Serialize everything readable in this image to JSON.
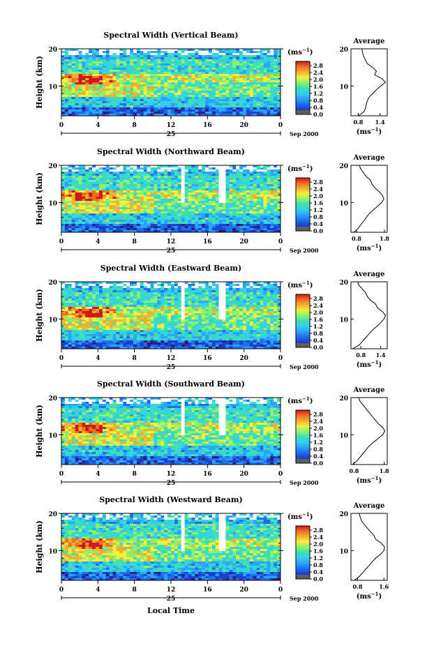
{
  "chart_data": {
    "type": "heatmap",
    "x_label": "Local Time",
    "x_ticks": [
      "0",
      "4",
      "8",
      "12",
      "16",
      "20",
      "0"
    ],
    "x_range": [
      0,
      24
    ],
    "date_day": "25",
    "date_suffix": "Sep 2000",
    "y_label": "Height (km)",
    "y_range": [
      2,
      20
    ],
    "y_ticks": [
      "20",
      "10"
    ],
    "colorbar_unit": "(ms",
    "colorbar_unit_sup": "−1",
    "colorbar_unit_close": ")",
    "colorbar_ticks": [
      "2.8",
      "2.4",
      "2.0",
      "1.6",
      "1.2",
      "0.8",
      "0.4",
      "0.0"
    ],
    "colorbar_range": [
      0,
      2.8
    ],
    "profile_title": "Average",
    "profile_unit": "(ms",
    "profile_unit_sup": "−1",
    "profile_unit_close": ")",
    "panels": [
      {
        "title": "Spectral Width (Vertical Beam)",
        "profile_xticks": [
          "0.8",
          "1.4"
        ],
        "profile_xrange": [
          0.6,
          1.6
        ],
        "profile": [
          [
            2,
            0.8
          ],
          [
            3,
            0.95
          ],
          [
            4,
            1.0
          ],
          [
            5,
            1.02
          ],
          [
            6,
            1.05
          ],
          [
            7,
            1.1
          ],
          [
            8,
            1.2
          ],
          [
            9,
            1.3
          ],
          [
            10,
            1.42
          ],
          [
            11,
            1.55
          ],
          [
            12,
            1.45
          ],
          [
            13,
            1.25
          ],
          [
            14,
            1.3
          ],
          [
            15,
            1.2
          ],
          [
            16,
            1.05
          ],
          [
            17,
            1.0
          ],
          [
            18,
            0.95
          ],
          [
            19,
            0.92
          ],
          [
            20,
            0.9
          ]
        ]
      },
      {
        "title": "Spectral Width (Northward Beam)",
        "profile_xticks": [
          "0.8",
          "1.8"
        ],
        "profile_xrange": [
          0.6,
          1.9
        ],
        "profile": [
          [
            2,
            0.7
          ],
          [
            3,
            0.85
          ],
          [
            4,
            0.95
          ],
          [
            5,
            1.05
          ],
          [
            6,
            1.15
          ],
          [
            7,
            1.25
          ],
          [
            8,
            1.4
          ],
          [
            9,
            1.55
          ],
          [
            10,
            1.7
          ],
          [
            11,
            1.78
          ],
          [
            12,
            1.72
          ],
          [
            13,
            1.6
          ],
          [
            14,
            1.45
          ],
          [
            15,
            1.35
          ],
          [
            16,
            1.3
          ],
          [
            17,
            1.15
          ],
          [
            18,
            1.05
          ],
          [
            19,
            0.95
          ],
          [
            20,
            0.9
          ]
        ]
      },
      {
        "title": "Spectral Width (Eastward Beam)",
        "profile_xticks": [
          "0.8",
          "1.4"
        ],
        "profile_xrange": [
          0.5,
          1.6
        ],
        "profile": [
          [
            2,
            0.55
          ],
          [
            3,
            0.75
          ],
          [
            4,
            0.85
          ],
          [
            5,
            0.95
          ],
          [
            6,
            1.05
          ],
          [
            7,
            1.15
          ],
          [
            8,
            1.28
          ],
          [
            9,
            1.4
          ],
          [
            10,
            1.5
          ],
          [
            11,
            1.55
          ],
          [
            12,
            1.45
          ],
          [
            13,
            1.3
          ],
          [
            14,
            1.25
          ],
          [
            15,
            1.1
          ],
          [
            16,
            1.0
          ],
          [
            17,
            0.95
          ],
          [
            18,
            0.85
          ],
          [
            19,
            0.75
          ],
          [
            20,
            0.7
          ]
        ]
      },
      {
        "title": "Spectral Width (Southward Beam)",
        "profile_xticks": [
          "0.8",
          "1.8"
        ],
        "profile_xrange": [
          0.7,
          1.9
        ],
        "profile": [
          [
            2,
            0.75
          ],
          [
            3,
            0.9
          ],
          [
            4,
            1.0
          ],
          [
            5,
            1.1
          ],
          [
            6,
            1.2
          ],
          [
            7,
            1.3
          ],
          [
            8,
            1.45
          ],
          [
            9,
            1.6
          ],
          [
            10,
            1.75
          ],
          [
            11,
            1.82
          ],
          [
            12,
            1.75
          ],
          [
            13,
            1.6
          ],
          [
            14,
            1.5
          ],
          [
            15,
            1.4
          ],
          [
            16,
            1.3
          ],
          [
            17,
            1.2
          ],
          [
            18,
            1.1
          ],
          [
            19,
            1.0
          ],
          [
            20,
            0.95
          ]
        ]
      },
      {
        "title": "Spectral Width (Westward Beam)",
        "profile_xticks": [
          "0.8",
          "1.6"
        ],
        "profile_xrange": [
          0.6,
          1.7
        ],
        "profile": [
          [
            2,
            0.7
          ],
          [
            3,
            0.85
          ],
          [
            4,
            0.95
          ],
          [
            5,
            1.05
          ],
          [
            6,
            1.15
          ],
          [
            7,
            1.25
          ],
          [
            8,
            1.35
          ],
          [
            9,
            1.5
          ],
          [
            10,
            1.6
          ],
          [
            11,
            1.62
          ],
          [
            12,
            1.52
          ],
          [
            13,
            1.35
          ],
          [
            14,
            1.3
          ],
          [
            15,
            1.2
          ],
          [
            16,
            1.1
          ],
          [
            17,
            1.0
          ],
          [
            18,
            0.92
          ],
          [
            19,
            0.88
          ],
          [
            20,
            0.85
          ]
        ]
      }
    ]
  },
  "colors": {
    "colormap": [
      "#2b1e7a",
      "#1f3fd0",
      "#1e6ff0",
      "#2aa5ff",
      "#34d0e8",
      "#3ee0b0",
      "#8ff070",
      "#f0f040",
      "#f5b030",
      "#f07020",
      "#d01818"
    ],
    "colorbar_bottom": "#606060"
  }
}
